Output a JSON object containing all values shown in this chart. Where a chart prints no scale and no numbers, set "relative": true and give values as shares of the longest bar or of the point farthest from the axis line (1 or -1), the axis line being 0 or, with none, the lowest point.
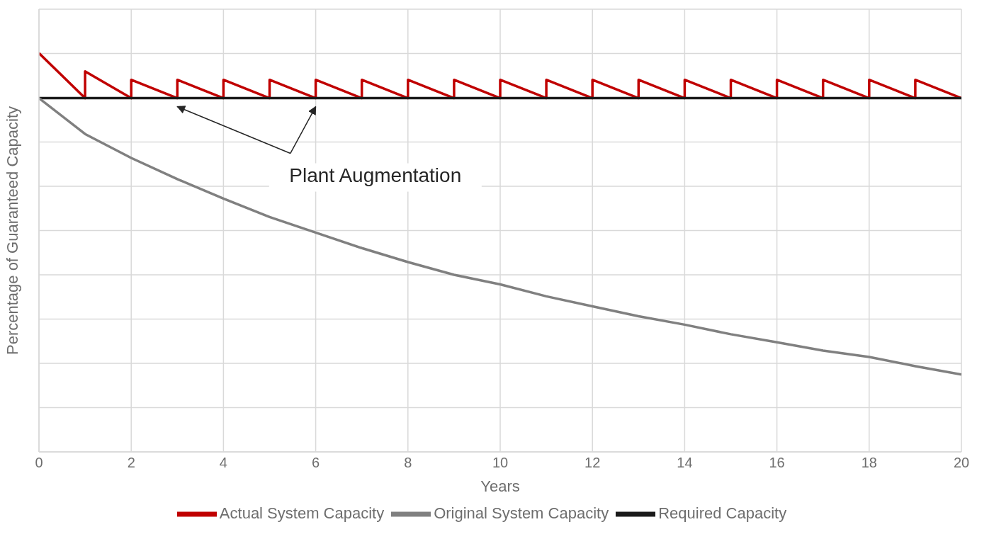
{
  "chart_data": {
    "type": "line",
    "relative": true,
    "xlabel": "Years",
    "ylabel": "Percentage of Guaranteed Capacity",
    "xlim": [
      0,
      20
    ],
    "xticks": [
      0,
      2,
      4,
      6,
      8,
      10,
      12,
      14,
      16,
      18,
      20
    ],
    "grid": true,
    "legend": "bottom",
    "marker": "none",
    "line_style": "solid",
    "annotations": [
      "Plant Augmentation"
    ],
    "series": [
      {
        "name": "Actual System Capacity",
        "color": "#c00000",
        "x": [
          0,
          1,
          1,
          2,
          2,
          3,
          3,
          4,
          4,
          5,
          5,
          6,
          6,
          7,
          7,
          8,
          8,
          9,
          9,
          10,
          10,
          11,
          11,
          12,
          12,
          13,
          13,
          14,
          14,
          15,
          15,
          16,
          16,
          17,
          17,
          18,
          18,
          19,
          19,
          20
        ],
        "values": [
          1,
          0.887,
          0.954,
          0.887,
          0.933,
          0.887,
          0.933,
          0.887,
          0.933,
          0.887,
          0.933,
          0.887,
          0.933,
          0.887,
          0.933,
          0.887,
          0.933,
          0.887,
          0.933,
          0.887,
          0.933,
          0.887,
          0.933,
          0.887,
          0.933,
          0.887,
          0.933,
          0.887,
          0.933,
          0.887,
          0.933,
          0.887,
          0.933,
          0.887,
          0.933,
          0.887,
          0.933,
          0.887,
          0.933,
          0.887
        ]
      },
      {
        "name": "Required Capacity",
        "color": "#1a1a1a",
        "x": [
          0,
          20
        ],
        "values": [
          0.887,
          0.887
        ]
      },
      {
        "name": "Original System Capacity",
        "color": "#808080",
        "x": [
          0,
          1,
          2,
          3,
          4,
          5,
          6,
          7,
          8,
          9,
          10,
          11,
          12,
          13,
          14,
          15,
          16,
          17,
          18,
          19,
          20
        ],
        "values": [
          0.887,
          0.797,
          0.737,
          0.684,
          0.635,
          0.589,
          0.55,
          0.511,
          0.476,
          0.444,
          0.42,
          0.39,
          0.365,
          0.34,
          0.319,
          0.295,
          0.275,
          0.254,
          0.238,
          0.215,
          0.194
        ]
      }
    ]
  }
}
